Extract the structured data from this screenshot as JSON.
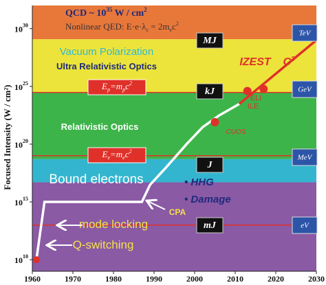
{
  "chart_data": {
    "type": "line",
    "log_y": true,
    "y_label": "Focused Intensity (W / cm²)",
    "xlim": [
      1960,
      2030
    ],
    "ylim": [
      1000000000.0,
      1e+32
    ],
    "xticks": [
      1960,
      1970,
      1980,
      1990,
      2000,
      2010,
      2020,
      2030
    ],
    "yticks": [
      {
        "value": 10000000000.0,
        "label": "10",
        "power": "10"
      },
      {
        "value": 1000000000000000.0,
        "label": "10",
        "power": "15"
      },
      {
        "value": 1e+20,
        "label": "10",
        "power": "20"
      },
      {
        "value": 1e+25,
        "label": "10",
        "power": "25"
      },
      {
        "value": 1e+30,
        "label": "10",
        "power": "30"
      }
    ],
    "bands": [
      {
        "from": 1.2e+29,
        "to": 1e+32,
        "color": "#e8773a"
      },
      {
        "from": 3e+24,
        "to": 1.2e+29,
        "color": "#ece43a"
      },
      {
        "from": 5e+18,
        "to": 3e+24,
        "color": "#3db44a"
      },
      {
        "from": 5e+16,
        "to": 5e+18,
        "color": "#33b5cf"
      },
      {
        "from": 1000000000.0,
        "to": 5e+16,
        "color": "#8a5aa5"
      }
    ],
    "ref_lines": {
      "color": "#e0302a",
      "values": [
        3e+24,
        1e+19,
        10000000000000.0
      ]
    },
    "series": [
      {
        "color": "#ffffff",
        "x": [
          1961,
          1963,
          1987,
          1989,
          1993,
          1998,
          2002,
          2006,
          2011
        ],
        "values": [
          10000000000.0,
          1000000000000000.0,
          1000000000000000.0,
          3e+16,
          1e+18,
          1e+20,
          3e+21,
          3e+22,
          3e+23
        ]
      },
      {
        "color": "#e0302a",
        "x": [
          2011,
          2030
        ],
        "values": [
          3e+23,
          1e+29
        ]
      },
      {
        "color": "#e0302a",
        "x": [
          1961,
          2005,
          2013,
          2017
        ],
        "values": [
          10000000000.0,
          8e+21,
          4e+24,
          6e+24
        ]
      }
    ],
    "annotations": [
      {
        "runs": [
          {
            "text": "QCD ~ 10"
          },
          {
            "text": "35",
            "sup": true
          },
          {
            "text": " W / cm"
          },
          {
            "text": "2",
            "sup": true
          }
        ]
      },
      {
        "runs": [
          {
            "text": "Nonlinear QED: E·e·λ"
          },
          {
            "text": "c",
            "sub": true
          },
          {
            "text": " = 2m"
          },
          {
            "text": "e",
            "sub": true
          },
          {
            "text": "c"
          },
          {
            "text": "2",
            "sup": true
          }
        ]
      },
      {
        "runs": [
          {
            "text": "Vacuum Polarization"
          }
        ]
      },
      {
        "runs": [
          {
            "text": "Ultra Relativistic Optics"
          }
        ]
      },
      {
        "runs": [
          {
            "text": "Relativistic Optics"
          }
        ]
      },
      {
        "runs": [
          {
            "text": "Bound electrons"
          }
        ]
      },
      {
        "runs": [
          {
            "text": "• HHG"
          }
        ]
      },
      {
        "runs": [
          {
            "text": "• Damage"
          }
        ]
      },
      {
        "runs": [
          {
            "text": "CPA"
          }
        ]
      },
      {
        "runs": [
          {
            "text": "mode locking"
          }
        ]
      },
      {
        "runs": [
          {
            "text": "Q-switching"
          }
        ]
      },
      {
        "runs": [
          {
            "text": "IZEST"
          }
        ]
      },
      {
        "runs": [
          {
            "text": "C"
          },
          {
            "text": "3",
            "sup": true
          }
        ]
      },
      {
        "runs": [
          {
            "text": "ELI"
          }
        ]
      },
      {
        "runs": [
          {
            "text": "ILE"
          }
        ]
      },
      {
        "runs": [
          {
            "text": "CUOS"
          }
        ]
      },
      {
        "runs": [
          {
            "text": "E"
          },
          {
            "text": "p",
            "sub": true
          },
          {
            "text": "=m"
          },
          {
            "text": "p",
            "sub": true
          },
          {
            "text": "c"
          },
          {
            "text": "2",
            "sup": true
          }
        ]
      },
      {
        "runs": [
          {
            "text": "E"
          },
          {
            "text": "e",
            "sub": true
          },
          {
            "text": "=m"
          },
          {
            "text": "e",
            "sub": true
          },
          {
            "text": "c"
          },
          {
            "text": "2",
            "sup": true
          }
        ]
      }
    ],
    "energy_boxes": [
      "MJ",
      "kJ",
      "J",
      "mJ"
    ],
    "particle_boxes": [
      "TeV",
      "GeV",
      "MeV",
      "eV"
    ]
  }
}
